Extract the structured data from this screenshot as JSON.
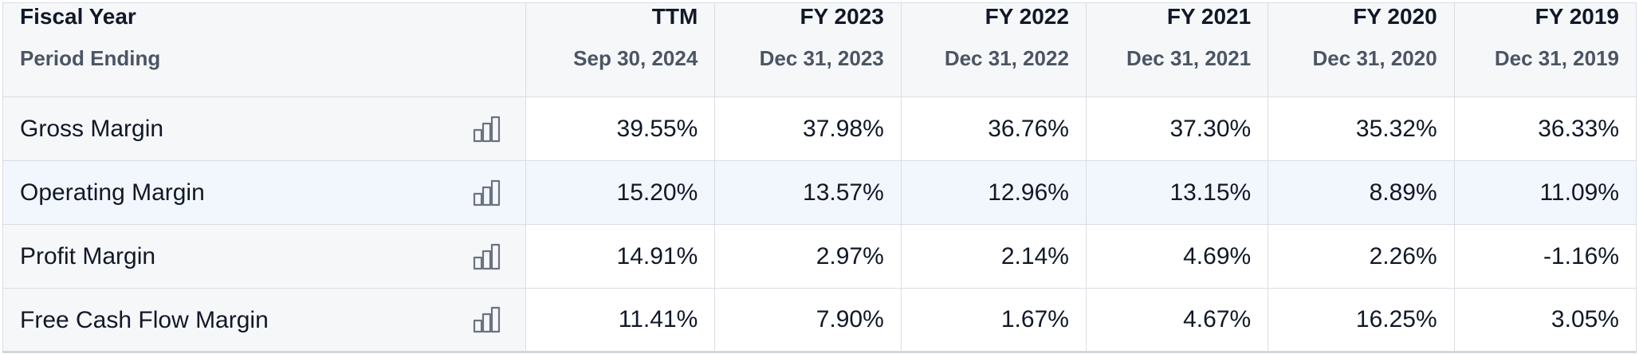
{
  "header": {
    "label_top": "Fiscal Year",
    "label_bottom": "Period Ending",
    "columns": [
      {
        "top": "TTM",
        "bottom": "Sep 30, 2024"
      },
      {
        "top": "FY 2023",
        "bottom": "Dec 31, 2023"
      },
      {
        "top": "FY 2022",
        "bottom": "Dec 31, 2022"
      },
      {
        "top": "FY 2021",
        "bottom": "Dec 31, 2021"
      },
      {
        "top": "FY 2020",
        "bottom": "Dec 31, 2020"
      },
      {
        "top": "FY 2019",
        "bottom": "Dec 31, 2019"
      }
    ]
  },
  "rows": [
    {
      "label": "Gross Margin",
      "icon": "bar-chart-icon",
      "values": [
        "39.55%",
        "37.98%",
        "36.76%",
        "37.30%",
        "35.32%",
        "36.33%"
      ]
    },
    {
      "label": "Operating Margin",
      "icon": "bar-chart-icon",
      "values": [
        "15.20%",
        "13.57%",
        "12.96%",
        "13.15%",
        "8.89%",
        "11.09%"
      ]
    },
    {
      "label": "Profit Margin",
      "icon": "bar-chart-icon",
      "values": [
        "14.91%",
        "2.97%",
        "2.14%",
        "4.69%",
        "2.26%",
        "-1.16%"
      ]
    },
    {
      "label": "Free Cash Flow Margin",
      "icon": "bar-chart-icon",
      "values": [
        "11.41%",
        "7.90%",
        "1.67%",
        "4.67%",
        "16.25%",
        "3.05%"
      ]
    }
  ],
  "colors": {
    "header_bg": "#f6f7f9",
    "highlight_row_bg": "#f1f7fd",
    "border": "#d9dde3",
    "icon_stroke": "#6b7280"
  }
}
